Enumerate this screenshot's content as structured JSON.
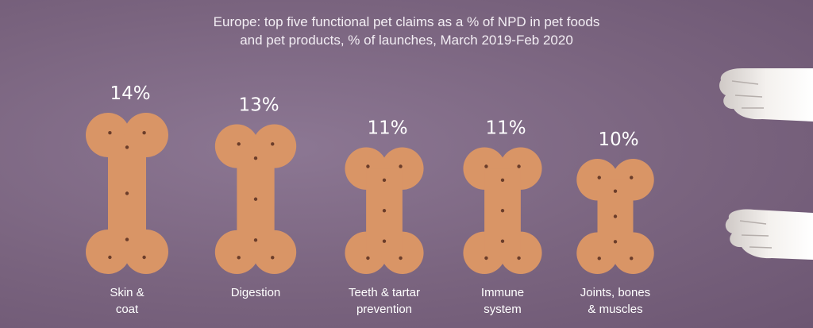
{
  "chart_data": {
    "type": "bar",
    "title": "Europe: top five functional pet claims as a % of NPD in pet foods and pet products, % of launches, March 2019-Feb 2020",
    "title_lines": [
      "Europe: top five functional pet claims as a % of NPD in pet foods",
      "and pet products, % of launches, March 2019-Feb 2020"
    ],
    "categories": [
      "Skin & coat",
      "Digestion",
      "Teeth & tartar prevention",
      "Immune system",
      "Joints, bones & muscles"
    ],
    "category_lines": [
      [
        "Skin &",
        "coat"
      ],
      [
        "Digestion"
      ],
      [
        "Teeth & tartar",
        "prevention"
      ],
      [
        "Immune",
        "system"
      ],
      [
        "Joints, bones",
        "& muscles"
      ]
    ],
    "values": [
      14,
      13,
      11,
      11,
      10
    ],
    "value_labels": [
      "14%",
      "13%",
      "11%",
      "11%",
      "10%"
    ],
    "unit": "%",
    "colors": {
      "background": "#7a647f",
      "bar": "#d99566",
      "bar_dots": "#6b3d2a",
      "text": "#ffffff"
    },
    "bar_shape": "dog-biscuit-bone",
    "decoration_icon": "dog-paw-icon"
  }
}
